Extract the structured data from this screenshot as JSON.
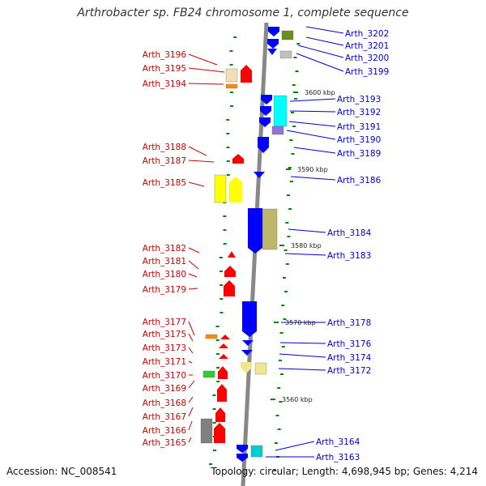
{
  "title": "Arthrobacter sp. FB24 chromosome 1, complete sequence",
  "footer": {
    "accession": "Accession: NC_008541",
    "topology": "Topology: circular; Length: 4,698,945 bp; Genes: 4,214"
  },
  "scale_labels": [
    "3600 kbp",
    "3590 kbp",
    "3580 kbp",
    "3570 kbp",
    "3560 kbp"
  ],
  "colors": {
    "reverse_label": "#cc0000",
    "forward_label": "#0000cc",
    "backbone": "#888888",
    "tick": "#008800"
  },
  "left_genes": [
    {
      "name": "Arth_3196",
      "color": "#f5deb3"
    },
    {
      "name": "Arth_3195",
      "color": "#ff0000"
    },
    {
      "name": "Arth_3194",
      "color": "#ff8c00"
    },
    {
      "name": "Arth_3188",
      "color": "#ff0000"
    },
    {
      "name": "Arth_3187",
      "color": "#ff0000"
    },
    {
      "name": "Arth_3185",
      "color": "#ffff00"
    },
    {
      "name": "Arth_3182",
      "color": "#ff0000"
    },
    {
      "name": "Arth_3181",
      "color": "#ff0000"
    },
    {
      "name": "Arth_3180",
      "color": "#ff0000"
    },
    {
      "name": "Arth_3179",
      "color": "#ff0000"
    },
    {
      "name": "Arth_3177",
      "color": "#ff8c00"
    },
    {
      "name": "Arth_3175",
      "color": "#ff0000"
    },
    {
      "name": "Arth_3173",
      "color": "#ff0000"
    },
    {
      "name": "Arth_3171",
      "color": "#32cd32"
    },
    {
      "name": "Arth_3170",
      "color": "#ff0000"
    },
    {
      "name": "Arth_3169",
      "color": "#ff0000"
    },
    {
      "name": "Arth_3168",
      "color": "#ff0000"
    },
    {
      "name": "Arth_3167",
      "color": "#ff0000"
    },
    {
      "name": "Arth_3166",
      "color": "#808080"
    },
    {
      "name": "Arth_3165",
      "color": "#ff0000"
    }
  ],
  "right_genes": [
    {
      "name": "Arth_3202",
      "color": "#0000ff"
    },
    {
      "name": "Arth_3201",
      "color": "#6b8e23"
    },
    {
      "name": "Arth_3200",
      "color": "#0000ff"
    },
    {
      "name": "Arth_3199",
      "color": "#c0c0c0"
    },
    {
      "name": "Arth_3193",
      "color": "#00ffff"
    },
    {
      "name": "Arth_3192",
      "color": "#0000ff"
    },
    {
      "name": "Arth_3191",
      "color": "#0000ff"
    },
    {
      "name": "Arth_3190",
      "color": "#9370db"
    },
    {
      "name": "Arth_3189",
      "color": "#0000ff"
    },
    {
      "name": "Arth_3186",
      "color": "#0000ff"
    },
    {
      "name": "Arth_3184",
      "color": "#bdb76b"
    },
    {
      "name": "Arth_3183",
      "color": "#0000ff"
    },
    {
      "name": "Arth_3178",
      "color": "#0000ff"
    },
    {
      "name": "Arth_3176",
      "color": "#0000ff"
    },
    {
      "name": "Arth_3174",
      "color": "#0000ff"
    },
    {
      "name": "Arth_3172",
      "color": "#f0e68c"
    },
    {
      "name": "Arth_3164",
      "color": "#00ced1"
    },
    {
      "name": "Arth_3163",
      "color": "#0000ff"
    }
  ]
}
